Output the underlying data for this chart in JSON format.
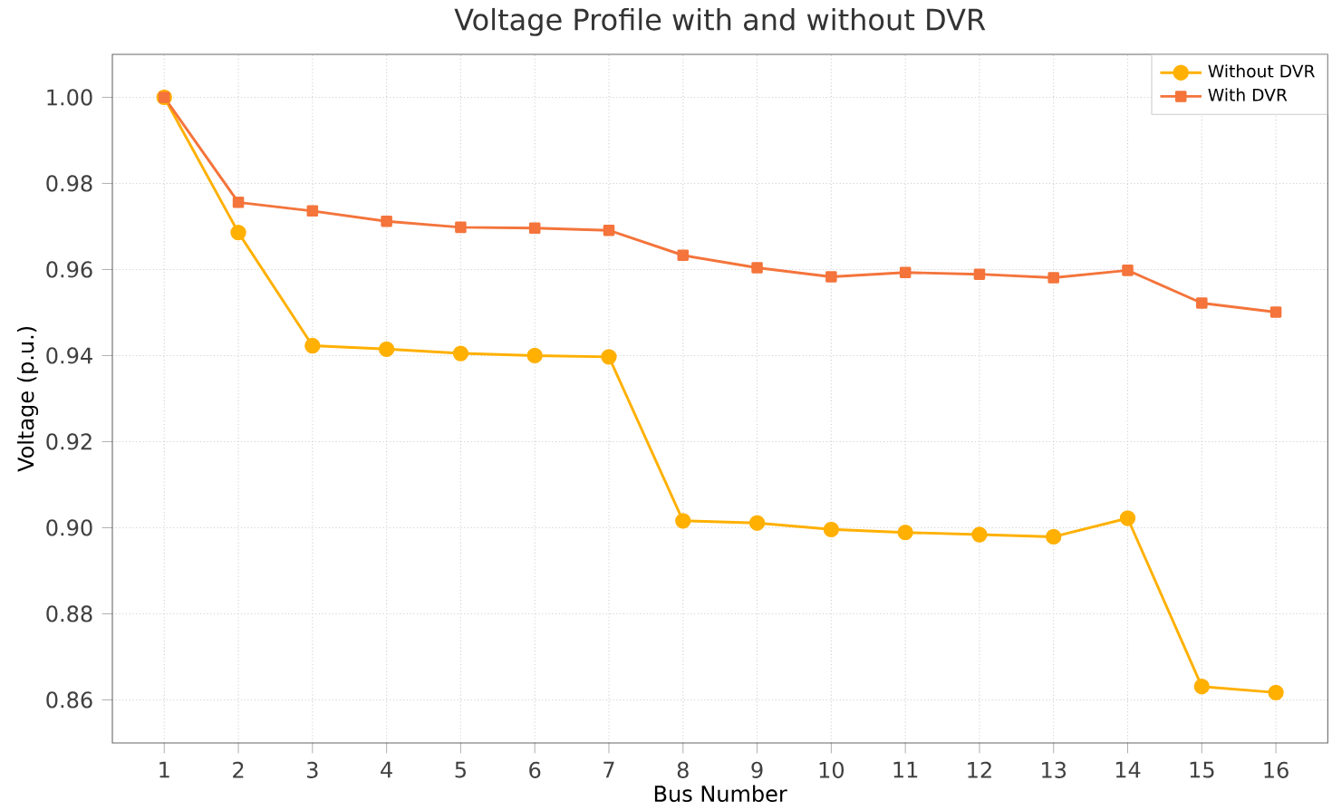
{
  "chart_data": {
    "type": "line",
    "title": "Voltage Profile with and without DVR",
    "xlabel": "Bus Number",
    "ylabel": "Voltage (p.u.)",
    "x": [
      1,
      2,
      3,
      4,
      5,
      6,
      7,
      8,
      9,
      10,
      11,
      12,
      13,
      14,
      15,
      16
    ],
    "series": [
      {
        "name": "Without DVR",
        "color": "#ffb000",
        "marker": "circle",
        "values": [
          1.0,
          0.9686,
          0.9423,
          0.9415,
          0.9405,
          0.94,
          0.9397,
          0.9016,
          0.9011,
          0.8996,
          0.8989,
          0.8984,
          0.8979,
          0.9022,
          0.8631,
          0.8617
        ]
      },
      {
        "name": "With DVR",
        "color": "#f4743b",
        "marker": "square",
        "values": [
          1.0,
          0.9756,
          0.9736,
          0.9712,
          0.9698,
          0.9696,
          0.9691,
          0.9633,
          0.9604,
          0.9583,
          0.9593,
          0.9589,
          0.9581,
          0.9598,
          0.9522,
          0.9501
        ]
      }
    ],
    "xlim": [
      0.3,
      16.7
    ],
    "ylim": [
      0.85,
      1.01
    ],
    "xticks": [
      1,
      2,
      3,
      4,
      5,
      6,
      7,
      8,
      9,
      10,
      11,
      12,
      13,
      14,
      15,
      16
    ],
    "yticks": [
      {
        "value": 0.86,
        "label": "0.86"
      },
      {
        "value": 0.88,
        "label": "0.88"
      },
      {
        "value": 0.9,
        "label": "0.90"
      },
      {
        "value": 0.92,
        "label": "0.92"
      },
      {
        "value": 0.94,
        "label": "0.94"
      },
      {
        "value": 0.96,
        "label": "0.96"
      },
      {
        "value": 0.98,
        "label": "0.98"
      },
      {
        "value": 1.0,
        "label": "1.00"
      }
    ],
    "grid": true,
    "legend": "top right",
    "line_style": "solid"
  }
}
